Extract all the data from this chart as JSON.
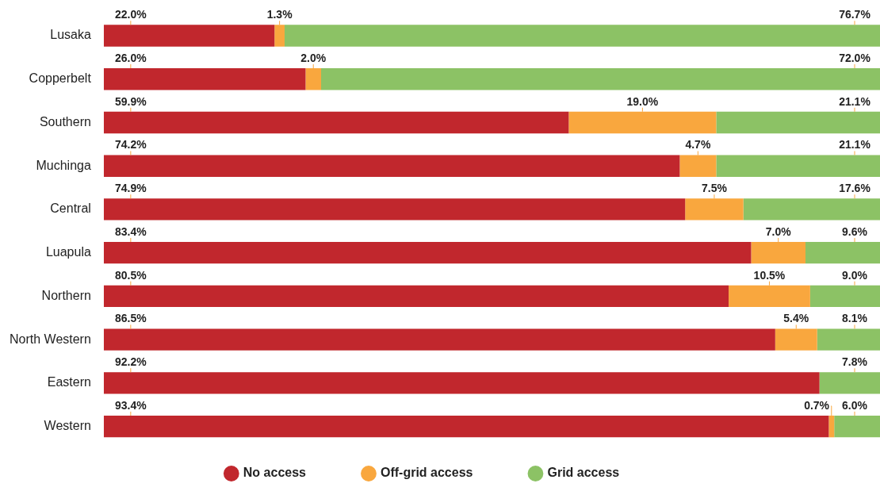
{
  "chart_data": {
    "type": "bar",
    "orientation": "horizontal",
    "stacked": true,
    "categories": [
      "Lusaka",
      "Copperbelt",
      "Southern",
      "Muchinga",
      "Central",
      "Luapula",
      "Northern",
      "North Western",
      "Eastern",
      "Western"
    ],
    "series": [
      {
        "name": "No access",
        "color": "#c1272d",
        "values": [
          22.0,
          26.0,
          59.9,
          74.2,
          74.9,
          83.4,
          80.5,
          86.5,
          92.2,
          93.4
        ],
        "value_labels": [
          "22.0%",
          "26.0%",
          "59.9%",
          "74.2%",
          "74.9%",
          "83.4%",
          "80.5%",
          "86.5%",
          "92.2%",
          "93.4%"
        ]
      },
      {
        "name": "Off-grid access",
        "color": "#f9a73e",
        "values": [
          1.3,
          2.0,
          19.0,
          4.7,
          7.5,
          7.0,
          10.5,
          5.4,
          null,
          0.7
        ],
        "value_labels": [
          "1.3%",
          "2.0%",
          "19.0%",
          "4.7%",
          "7.5%",
          "7.0%",
          "10.5%",
          "5.4%",
          null,
          "0.7%"
        ]
      },
      {
        "name": "Grid access",
        "color": "#8cc265",
        "values": [
          76.7,
          72.0,
          21.1,
          21.1,
          17.6,
          9.6,
          9.0,
          8.1,
          7.8,
          6.0
        ],
        "value_labels": [
          "76.7%",
          "72.0%",
          "21.1%",
          "21.1%",
          "17.6%",
          "9.6%",
          "9.0%",
          "8.1%",
          "7.8%",
          "6.0%"
        ]
      }
    ],
    "xlim": [
      0,
      100
    ],
    "tick_labels": "y",
    "legend": "bottom"
  }
}
